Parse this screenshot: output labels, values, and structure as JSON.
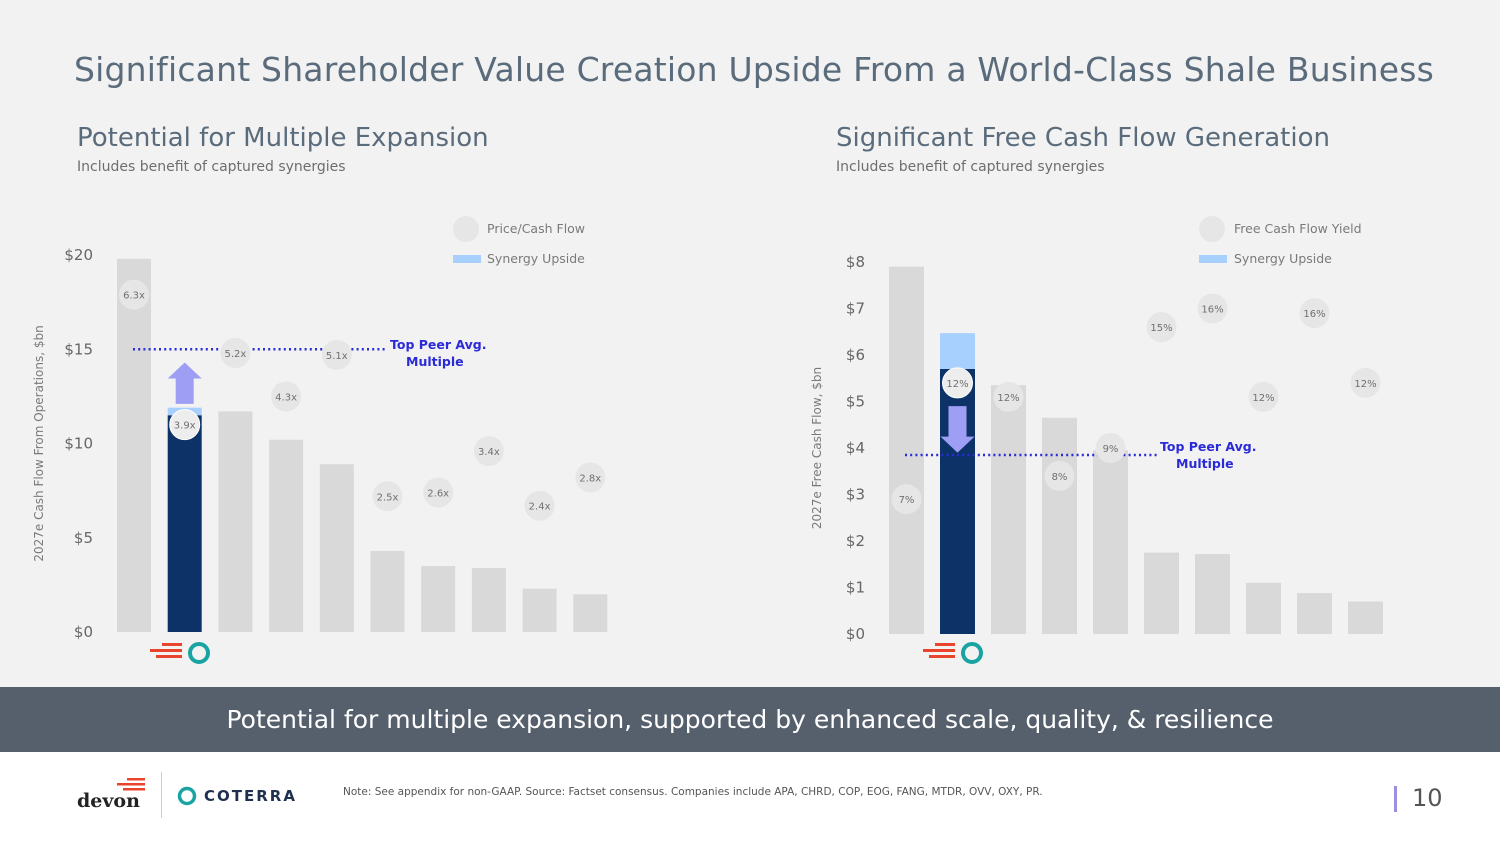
{
  "slide": {
    "title": "Significant Shareholder Value Creation Upside From a World-Class Shale Business",
    "banner": "Potential for multiple expansion, supported by enhanced scale, quality, & resilience",
    "footnote": "Note: See appendix for non-GAAP. Source: Factset consensus. Companies include APA, CHRD, COP, EOG, FANG, MTDR, OVV, OXY, PR.",
    "page_number": "10",
    "logos": {
      "devon": "devon",
      "coterra": "COTERRA"
    },
    "colors": {
      "highlight_bar": "#0d3268",
      "peer_bar": "#d9d9d9",
      "synergy": "#a8d0ff",
      "peer_line": "#2a2ad6",
      "arrow": "#9f9ef5",
      "banner": "#56606d"
    }
  },
  "left_panel": {
    "title": "Potential for Multiple Expansion",
    "subtitle": "Includes benefit of captured synergies",
    "legend": {
      "circle": "Price/Cash Flow",
      "bar": "Synergy Upside"
    },
    "peer_line_label": [
      "Top Peer Avg.",
      "Multiple"
    ]
  },
  "right_panel": {
    "title": "Significant Free Cash Flow Generation",
    "subtitle": "Includes benefit of captured synergies",
    "legend": {
      "circle": "Free Cash Flow Yield",
      "bar": "Synergy Upside"
    },
    "peer_line_label": [
      "Top Peer Avg.",
      "Multiple"
    ]
  },
  "chart_data": [
    {
      "type": "bar",
      "title": "Potential for Multiple Expansion",
      "xlabel": "",
      "ylabel": "2027e Cash Flow From Operations, $bn",
      "ylim": [
        0,
        20
      ],
      "yticks": [
        0,
        5,
        10,
        15,
        20
      ],
      "ytick_labels": [
        "$0",
        "$5",
        "$10",
        "$15",
        "$20"
      ],
      "highlight_index": 1,
      "values": [
        19.8,
        11.5,
        11.7,
        10.2,
        8.9,
        4.3,
        3.5,
        3.4,
        2.3,
        2.0
      ],
      "synergy_upside": [
        0,
        0.4,
        0,
        0,
        0,
        0,
        0,
        0,
        0,
        0
      ],
      "annotations": [
        "6.3x",
        "3.9x",
        "5.2x",
        "4.3x",
        "5.1x",
        "2.5x",
        "2.6x",
        "3.4x",
        "2.4x",
        "2.8x"
      ],
      "annotation_levels": [
        17.9,
        11.0,
        14.8,
        12.5,
        14.7,
        7.2,
        7.4,
        9.6,
        6.7,
        8.2
      ],
      "peer_line": 15.0,
      "arrow": {
        "from": 12.1,
        "to": 14.3,
        "direction": "up"
      }
    },
    {
      "type": "bar",
      "title": "Significant Free Cash Flow Generation",
      "xlabel": "",
      "ylabel": "2027e Free Cash Flow, $bn",
      "ylim": [
        0,
        8
      ],
      "yticks": [
        0,
        1,
        2,
        3,
        4,
        5,
        6,
        7,
        8
      ],
      "ytick_labels": [
        "$0",
        "$1",
        "$2",
        "$3",
        "$4",
        "$5",
        "$6",
        "$7",
        "$8"
      ],
      "highlight_index": 1,
      "values": [
        7.9,
        5.7,
        5.35,
        4.65,
        3.95,
        1.75,
        1.72,
        1.1,
        0.88,
        0.7
      ],
      "synergy_upside": [
        0,
        0.77,
        0,
        0,
        0,
        0,
        0,
        0,
        0,
        0
      ],
      "annotations": [
        "7%",
        "12%",
        "12%",
        "8%",
        "9%",
        "15%",
        "16%",
        "12%",
        "16%",
        "12%"
      ],
      "annotation_levels": [
        2.9,
        5.4,
        5.1,
        3.4,
        4.0,
        6.6,
        7.0,
        5.1,
        6.9,
        5.4
      ],
      "peer_line": 3.85,
      "arrow": {
        "from": 4.9,
        "to": 3.9,
        "direction": "down"
      }
    }
  ]
}
